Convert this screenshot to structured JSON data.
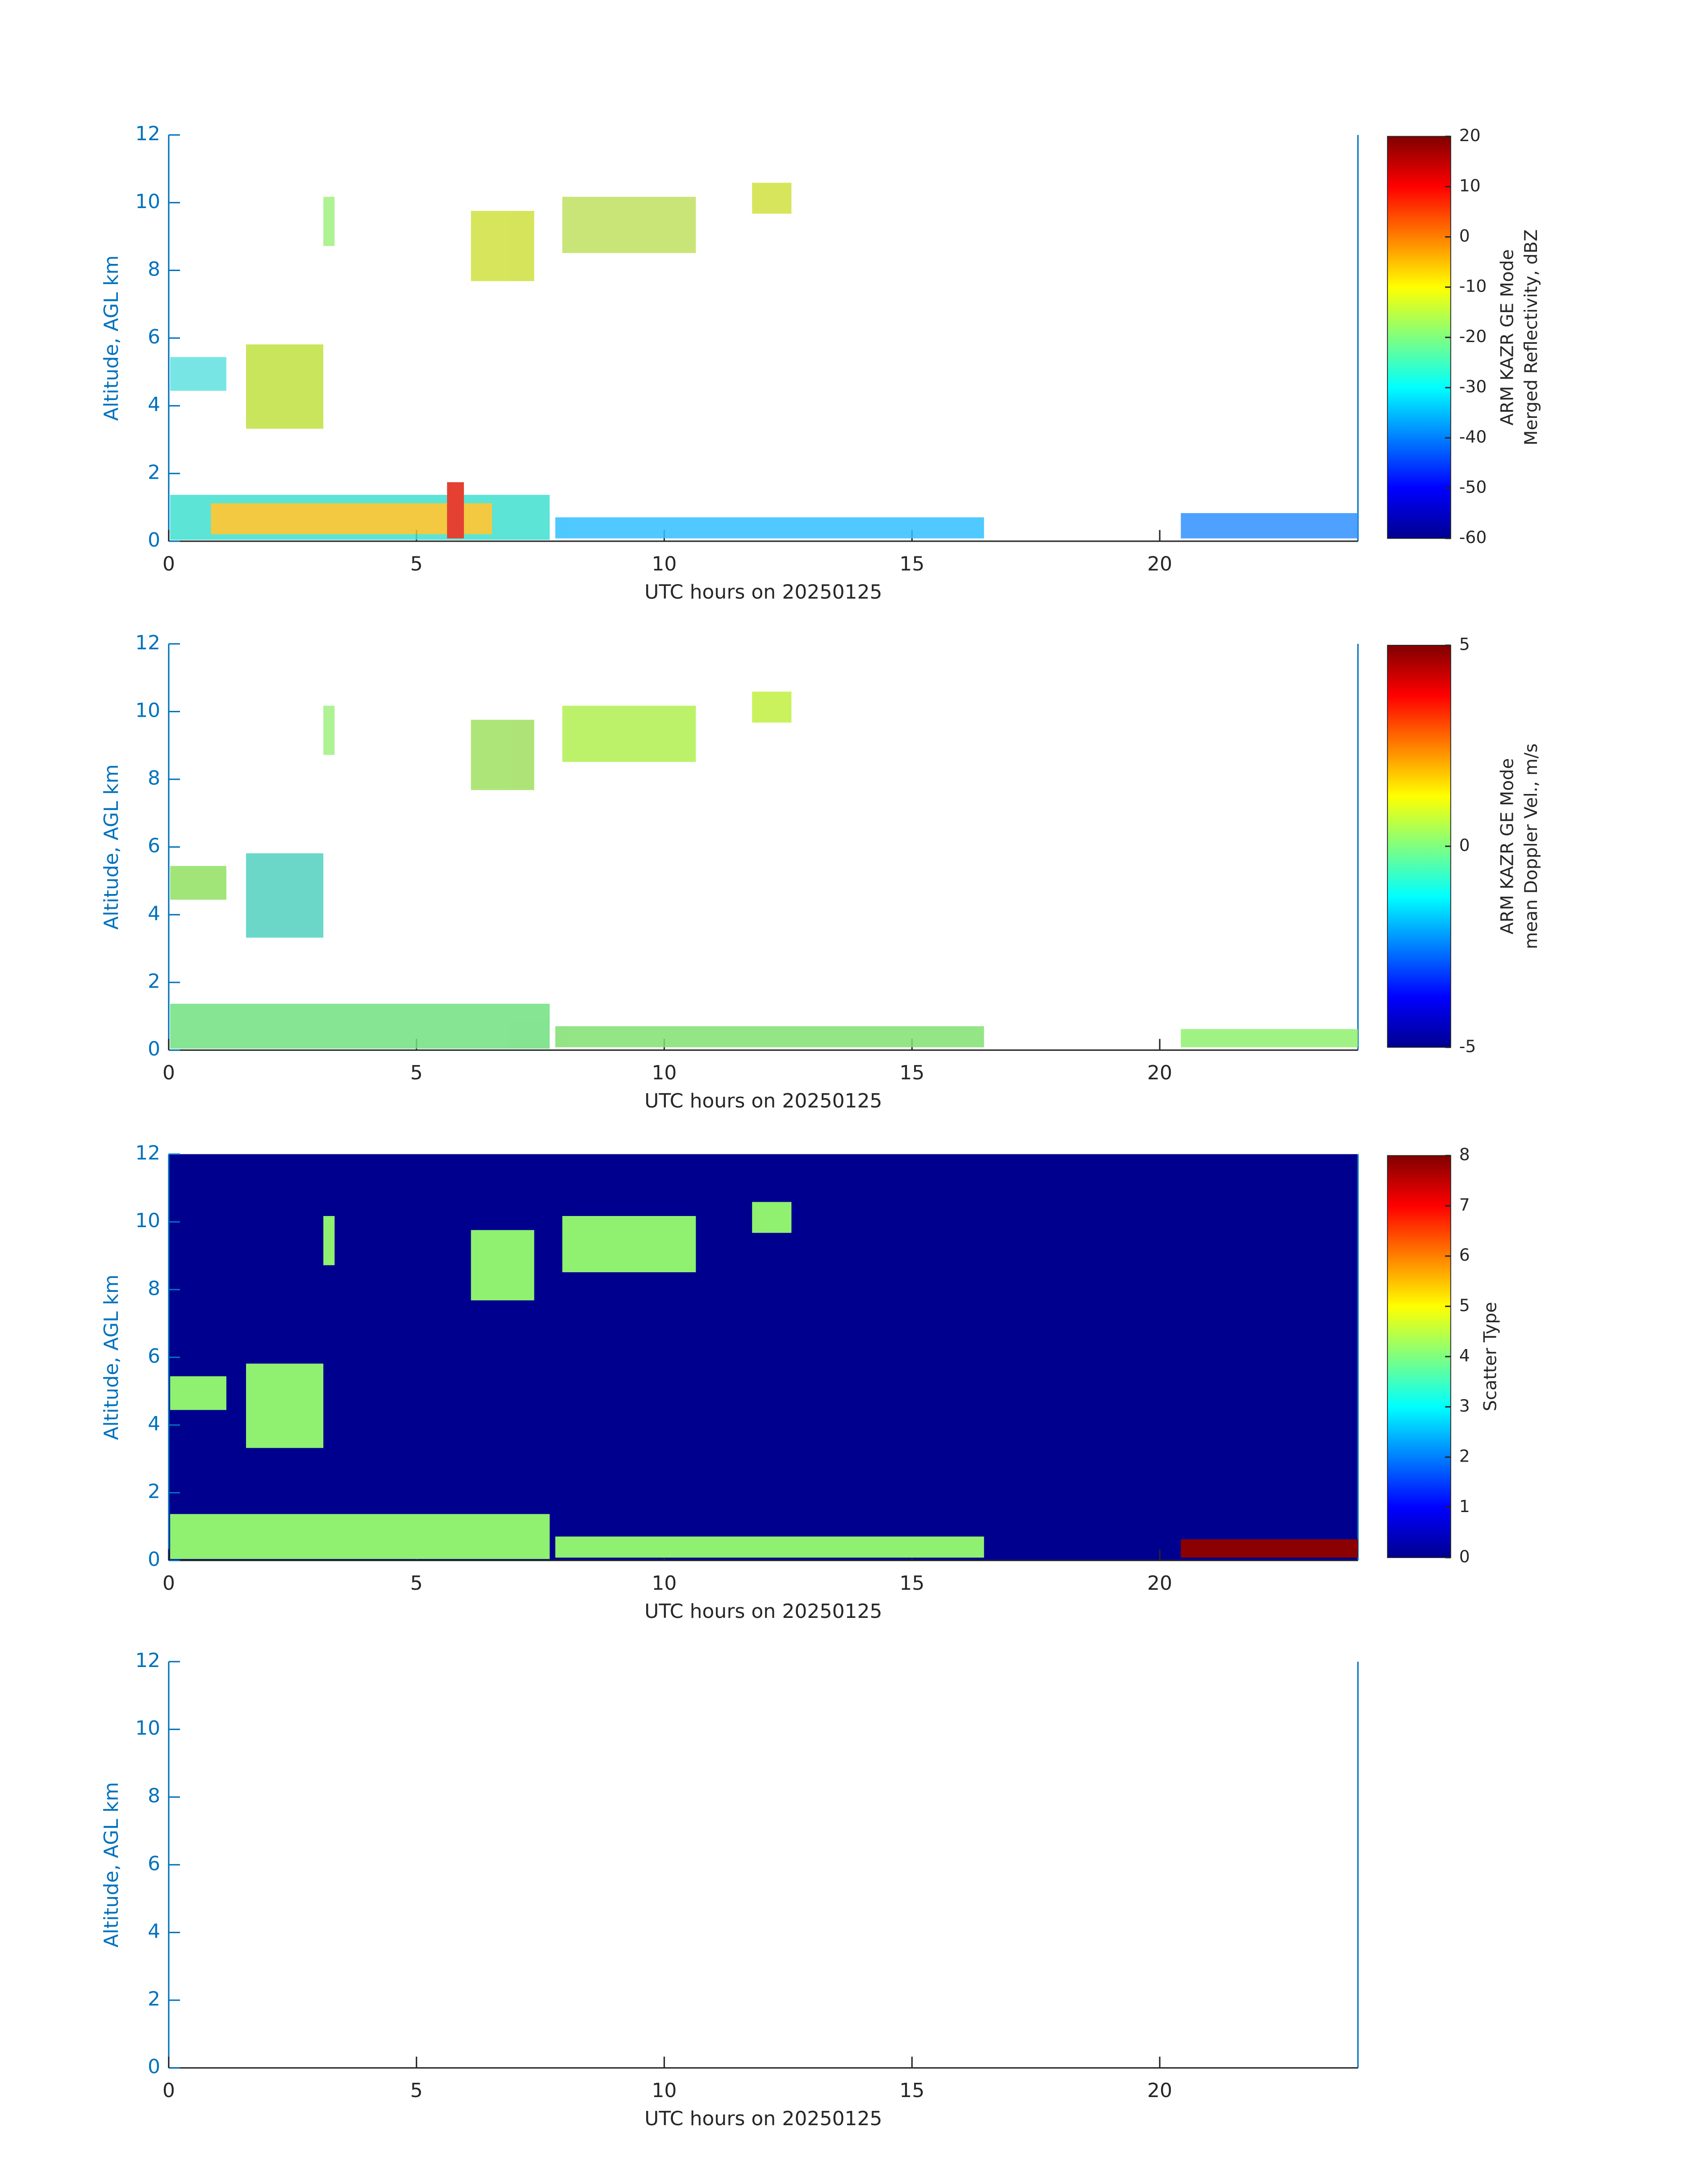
{
  "chart_data": [
    {
      "type": "heatmap",
      "xlabel": "UTC hours on 20250125",
      "ylabel": "Altitude, AGL km",
      "xlim": [
        0,
        24
      ],
      "ylim": [
        0,
        12
      ],
      "xticks": [
        0,
        5,
        10,
        15,
        20
      ],
      "yticks": [
        0,
        2,
        4,
        6,
        8,
        10,
        12
      ],
      "background": "#ffffff",
      "colorbar": {
        "label": [
          "ARM KAZR GE Mode",
          "Merged Reflectivity, dBZ"
        ],
        "lim": [
          -60,
          20
        ],
        "ticks": [
          -60,
          -50,
          -40,
          -30,
          -20,
          -10,
          0,
          10,
          20
        ],
        "colormap": "jet"
      }
    },
    {
      "type": "heatmap",
      "xlabel": "UTC hours on 20250125",
      "ylabel": "Altitude, AGL km",
      "xlim": [
        0,
        24
      ],
      "ylim": [
        0,
        12
      ],
      "xticks": [
        0,
        5,
        10,
        15,
        20
      ],
      "yticks": [
        0,
        2,
        4,
        6,
        8,
        10,
        12
      ],
      "background": "#ffffff",
      "colorbar": {
        "label": [
          "ARM KAZR GE Mode",
          "mean Doppler Vel., m/s"
        ],
        "lim": [
          -5,
          5
        ],
        "ticks": [
          -5,
          0,
          5
        ],
        "colormap": "jet"
      }
    },
    {
      "type": "heatmap",
      "xlabel": "UTC hours on 20250125",
      "ylabel": "Altitude, AGL km",
      "xlim": [
        0,
        24
      ],
      "ylim": [
        0,
        12
      ],
      "xticks": [
        0,
        5,
        10,
        15,
        20
      ],
      "yticks": [
        0,
        2,
        4,
        6,
        8,
        10,
        12
      ],
      "background": "#00008f",
      "colorbar": {
        "label": [
          "Scatter Type"
        ],
        "lim": [
          0,
          8
        ],
        "ticks": [
          0,
          1,
          2,
          3,
          4,
          5,
          6,
          7,
          8
        ],
        "colormap": "jet"
      }
    },
    {
      "type": "heatmap",
      "xlabel": "UTC hours on 20250125",
      "ylabel": "Altitude, AGL km",
      "xlim": [
        0,
        24
      ],
      "ylim": [
        0,
        12
      ],
      "xticks": [
        0,
        5,
        10,
        15,
        20
      ],
      "yticks": [
        0,
        2,
        4,
        6,
        8,
        10,
        12
      ],
      "background": "#ffffff"
    }
  ]
}
